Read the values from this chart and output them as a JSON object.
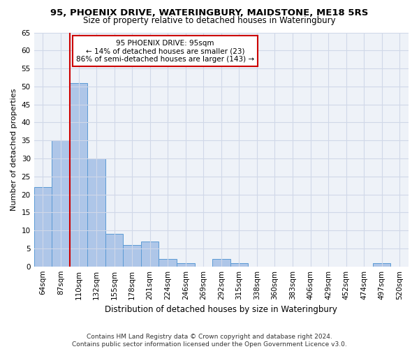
{
  "title1": "95, PHOENIX DRIVE, WATERINGBURY, MAIDSTONE, ME18 5RS",
  "title2": "Size of property relative to detached houses in Wateringbury",
  "xlabel": "Distribution of detached houses by size in Wateringbury",
  "ylabel": "Number of detached properties",
  "categories": [
    "64sqm",
    "87sqm",
    "110sqm",
    "132sqm",
    "155sqm",
    "178sqm",
    "201sqm",
    "224sqm",
    "246sqm",
    "269sqm",
    "292sqm",
    "315sqm",
    "338sqm",
    "360sqm",
    "383sqm",
    "406sqm",
    "429sqm",
    "452sqm",
    "474sqm",
    "497sqm",
    "520sqm"
  ],
  "values": [
    22,
    35,
    51,
    30,
    9,
    6,
    7,
    2,
    1,
    0,
    2,
    1,
    0,
    0,
    0,
    0,
    0,
    0,
    0,
    1,
    0
  ],
  "bar_color": "#aec6e8",
  "bar_edge_color": "#5b9bd5",
  "vline_color": "#cc0000",
  "annotation_line1": "95 PHOENIX DRIVE: 95sqm",
  "annotation_line2": "← 14% of detached houses are smaller (23)",
  "annotation_line3": "86% of semi-detached houses are larger (143) →",
  "annotation_box_color": "#ffffff",
  "annotation_box_edge": "#cc0000",
  "ylim": [
    0,
    65
  ],
  "yticks": [
    0,
    5,
    10,
    15,
    20,
    25,
    30,
    35,
    40,
    45,
    50,
    55,
    60,
    65
  ],
  "grid_color": "#d0d8e8",
  "bg_color": "#eef2f8",
  "footnote": "Contains HM Land Registry data © Crown copyright and database right 2024.\nContains public sector information licensed under the Open Government Licence v3.0.",
  "title1_fontsize": 9.5,
  "title2_fontsize": 8.5,
  "xlabel_fontsize": 8.5,
  "ylabel_fontsize": 8,
  "tick_fontsize": 7.5,
  "annotation_fontsize": 7.5,
  "footnote_fontsize": 6.5
}
